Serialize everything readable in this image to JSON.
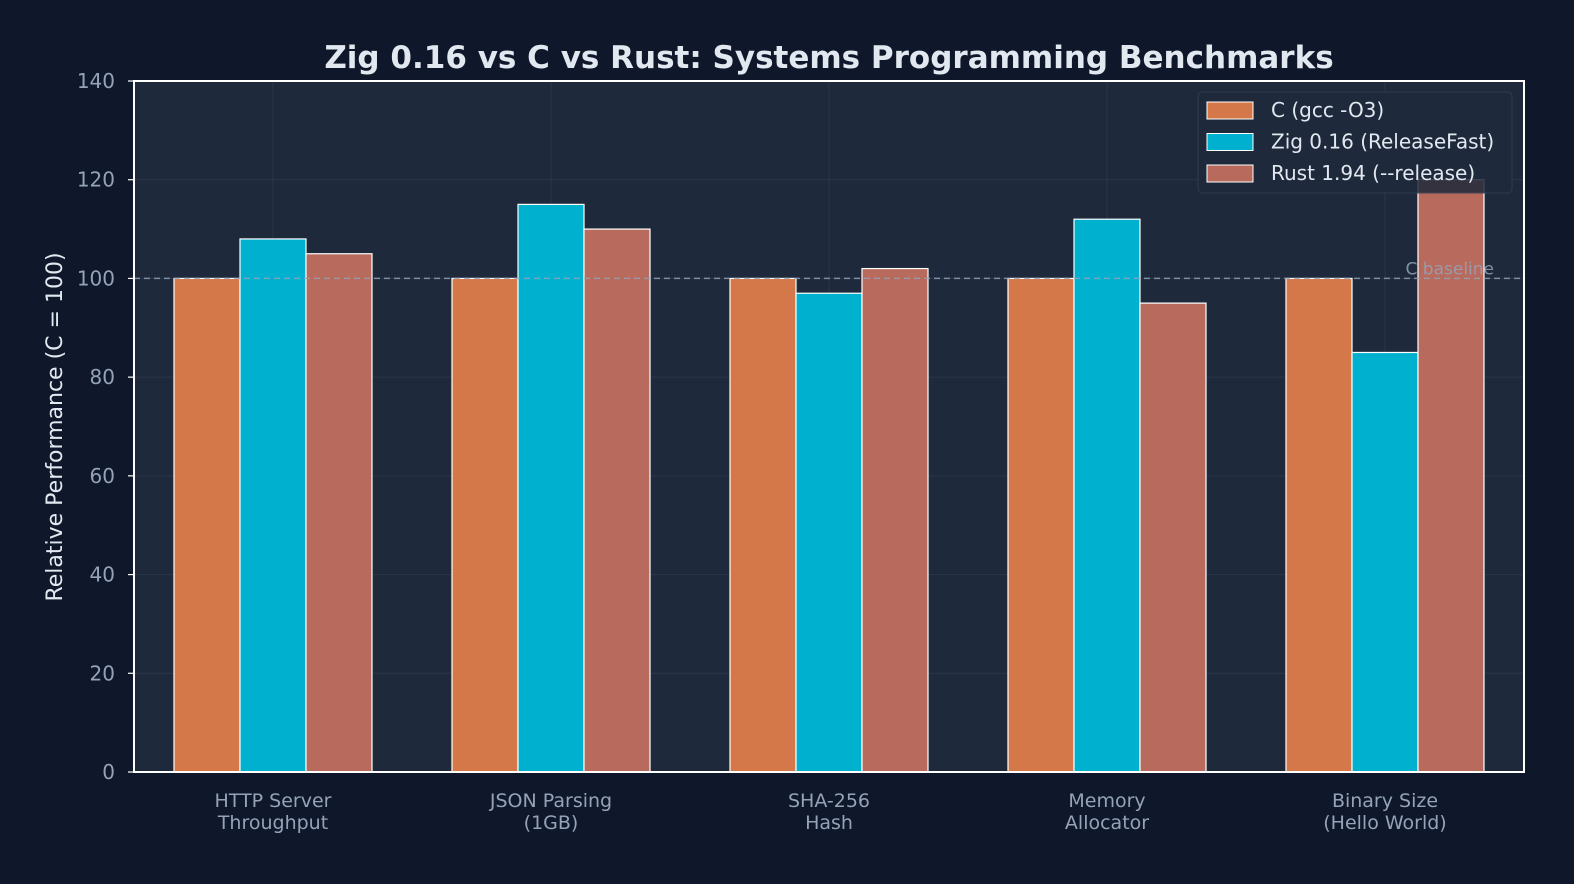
{
  "chart_data": {
    "type": "bar",
    "title": "Zig 0.16 vs C vs Rust: Systems Programming Benchmarks",
    "xlabel": "",
    "ylabel": "Relative Performance (C = 100)",
    "categories": [
      [
        "HTTP Server",
        "Throughput"
      ],
      [
        "JSON Parsing",
        "(1GB)"
      ],
      [
        "SHA-256",
        "Hash"
      ],
      [
        "Memory",
        "Allocator"
      ],
      [
        "Binary Size",
        "(Hello World)"
      ]
    ],
    "series": [
      {
        "name": "C (gcc -O3)",
        "color": "#d4784a",
        "values": [
          100,
          100,
          100,
          100,
          100
        ]
      },
      {
        "name": "Zig 0.16 (ReleaseFast)",
        "color": "#00b0cf",
        "values": [
          108,
          115,
          97,
          112,
          85
        ]
      },
      {
        "name": "Rust 1.94 (--release)",
        "color": "#b86a5c",
        "values": [
          105,
          110,
          102,
          95,
          120
        ]
      }
    ],
    "ylim": [
      0,
      140
    ],
    "yticks": [
      0,
      20,
      40,
      60,
      80,
      100,
      120,
      140
    ],
    "grid": true,
    "legend_position": "top-right",
    "reference_line": {
      "value": 100,
      "label": "C baseline"
    },
    "colors": {
      "background": "#0f172a",
      "plot_background": "#1e293b",
      "grid": "#334155",
      "axes": "#ffffff",
      "text": "#e2e8f0",
      "tick_text": "#94a3b8",
      "reference": "#94a3b8"
    }
  }
}
